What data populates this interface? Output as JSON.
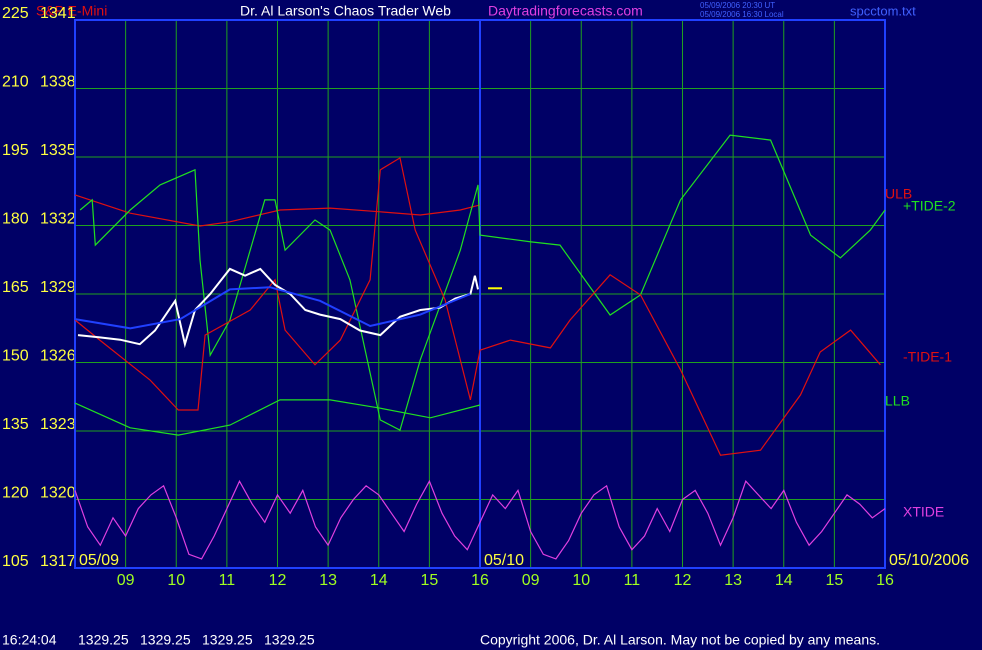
{
  "chart_data": {
    "type": "line",
    "title": "S&P E-Mini",
    "header": "Dr. Al Larson's Chaos Trader Web",
    "site": "Daytradingforecasts.com",
    "time_stamps": [
      "05/09/2006 20:30 UT",
      "05/09/2006 16:30 Local"
    ],
    "file_name": "spcctom.txt",
    "copyright": "Copyright 2006, Dr. Al Larson. May not be copied by any means.",
    "status": {
      "time": "16:24:04",
      "quotes": [
        1329.25,
        1329.25,
        1329.25,
        1329.25
      ]
    },
    "xlim": [
      0,
      16
    ],
    "xticks": [
      {
        "value": 1,
        "label": "09"
      },
      {
        "value": 2,
        "label": "10"
      },
      {
        "value": 3,
        "label": "11"
      },
      {
        "value": 4,
        "label": "12"
      },
      {
        "value": 5,
        "label": "13"
      },
      {
        "value": 6,
        "label": "14"
      },
      {
        "value": 7,
        "label": "15"
      },
      {
        "value": 8,
        "label": "16"
      },
      {
        "value": 9,
        "label": "09"
      },
      {
        "value": 10,
        "label": "10"
      },
      {
        "value": 11,
        "label": "11"
      },
      {
        "value": 12,
        "label": "12"
      },
      {
        "value": 13,
        "label": "13"
      },
      {
        "value": 14,
        "label": "14"
      },
      {
        "value": 15,
        "label": "15"
      },
      {
        "value": 16,
        "label": "16"
      }
    ],
    "date_labels": [
      {
        "value": 0,
        "label": "05/09"
      },
      {
        "value": 8,
        "label": "05/10"
      },
      {
        "value": 16,
        "label": "05/10/2006"
      }
    ],
    "ylim": [
      105,
      225
    ],
    "yticks": [
      105,
      120,
      135,
      150,
      165,
      180,
      195,
      210,
      225
    ],
    "y2lim": [
      1317,
      1341
    ],
    "y2ticks": [
      1317,
      1320,
      1323,
      1326,
      1329,
      1332,
      1335,
      1338,
      1341
    ],
    "grid": true,
    "series": [
      {
        "name": "ULB",
        "color": "#e01010",
        "x": [
          0,
          1.09,
          2.47,
          3.06,
          4.05,
          5.04,
          6.03,
          6.82,
          7.61,
          8.0
        ],
        "values": [
          186.7,
          182.7,
          179.9,
          180.8,
          183.4,
          183.8,
          183.0,
          182.3,
          183.4,
          184.5
        ]
      },
      {
        "name": "+TIDE-2",
        "color": "#20e020",
        "x": [
          0.1,
          0.34,
          0.4,
          1.09,
          1.68,
          2.37,
          2.47,
          2.67,
          3.06,
          3.75,
          3.95,
          4.15,
          4.74,
          5.04,
          5.43,
          6.03,
          6.42,
          6.82,
          7.61,
          7.96,
          8.0,
          9.01,
          9.58,
          10.57,
          11.17,
          11.96,
          12.94,
          13.74,
          14.53,
          15.12,
          15.71,
          16.0
        ],
        "values": [
          183.4,
          185.6,
          175.7,
          183.4,
          188.9,
          192.2,
          172.5,
          151.6,
          159.3,
          185.6,
          185.6,
          174.6,
          181.2,
          179.0,
          168.1,
          137.4,
          135.2,
          150.6,
          174.6,
          188.9,
          177.9,
          176.4,
          175.7,
          160.4,
          164.8,
          185.6,
          199.8,
          198.7,
          177.9,
          172.9,
          179.0,
          183.4
        ]
      },
      {
        "name": "-TIDE-1",
        "color": "#e01010",
        "x": [
          0,
          0.49,
          1.48,
          2.04,
          2.43,
          2.57,
          3.46,
          3.95,
          4.15,
          4.74,
          5.24,
          5.83,
          6.03,
          6.42,
          6.72,
          7.31,
          7.81,
          8.0,
          8.6,
          9.39,
          9.78,
          10.57,
          11.17,
          11.96,
          12.75,
          13.54,
          14.33,
          14.72,
          15.32,
          15.91
        ],
        "values": [
          159.3,
          154.9,
          146.2,
          139.6,
          139.6,
          156.0,
          161.5,
          168.1,
          157.1,
          149.5,
          154.9,
          168.1,
          192.2,
          194.8,
          179.0,
          163.7,
          141.8,
          152.7,
          154.9,
          153.2,
          159.3,
          169.2,
          164.8,
          148.4,
          129.7,
          130.8,
          142.9,
          152.3,
          157.1,
          149.5
        ]
      },
      {
        "name": "LLB",
        "color": "#20e020",
        "x": [
          0,
          1.09,
          2.04,
          3.06,
          4.05,
          5.04,
          6.03,
          7.02,
          8.0
        ],
        "values": [
          141.1,
          135.7,
          134.1,
          136.3,
          141.8,
          141.8,
          140.0,
          137.9,
          140.7
        ]
      },
      {
        "name": "XTIDE",
        "color": "#e040e0",
        "x": [
          0,
          0.25,
          0.5,
          0.75,
          1,
          1.25,
          1.5,
          1.75,
          2,
          2.25,
          2.5,
          2.75,
          3,
          3.25,
          3.5,
          3.75,
          4,
          4.25,
          4.5,
          4.75,
          5,
          5.25,
          5.5,
          5.75,
          6,
          6.25,
          6.5,
          6.75,
          7,
          7.25,
          7.5,
          7.75,
          8,
          8.25,
          8.5,
          8.75,
          9,
          9.25,
          9.5,
          9.75,
          10,
          10.25,
          10.5,
          10.75,
          11,
          11.25,
          11.5,
          11.75,
          12,
          12.25,
          12.5,
          12.75,
          13,
          13.25,
          13.5,
          13.75,
          14,
          14.25,
          14.5,
          14.75,
          15,
          15.25,
          15.5,
          15.75,
          16
        ],
        "values": [
          122,
          114,
          110,
          116,
          112,
          118,
          121,
          123,
          116,
          108,
          107,
          112,
          118,
          124,
          119,
          115,
          121,
          117,
          122,
          114,
          110,
          116,
          120,
          123,
          121,
          117,
          113,
          119,
          124,
          117,
          112,
          109,
          115,
          121,
          118,
          122,
          113,
          108,
          107,
          111,
          117,
          121,
          123,
          114,
          109,
          112,
          118,
          113,
          120,
          122,
          117,
          110,
          116,
          124,
          121,
          118,
          122,
          115,
          110,
          113,
          117,
          121,
          119,
          116,
          118
        ]
      },
      {
        "color": "#ffffff",
        "axis": "y2",
        "x": [
          0.06,
          0.49,
          0.89,
          1.28,
          1.58,
          1.98,
          2.17,
          2.37,
          2.67,
          3.06,
          3.36,
          3.66,
          3.95,
          4.25,
          4.55,
          4.84,
          5.24,
          5.63,
          6.03,
          6.42,
          6.82,
          7.21,
          7.51,
          7.81,
          7.9,
          7.96
        ],
        "values": [
          1327.2,
          1327.1,
          1327.0,
          1326.8,
          1327.4,
          1328.7,
          1326.8,
          1328.3,
          1329.0,
          1330.1,
          1329.8,
          1330.1,
          1329.4,
          1329.0,
          1328.3,
          1328.1,
          1327.9,
          1327.4,
          1327.2,
          1328.0,
          1328.3,
          1328.4,
          1328.8,
          1329.0,
          1329.8,
          1329.2
        ]
      },
      {
        "color": "#2040ff",
        "axis": "y2",
        "x": [
          0,
          1.09,
          2.08,
          3.06,
          3.85,
          4.84,
          5.83,
          6.82,
          7.81
        ],
        "values": [
          1327.9,
          1327.5,
          1327.9,
          1329.2,
          1329.3,
          1328.7,
          1327.6,
          1328.1,
          1329.0
        ]
      }
    ]
  }
}
